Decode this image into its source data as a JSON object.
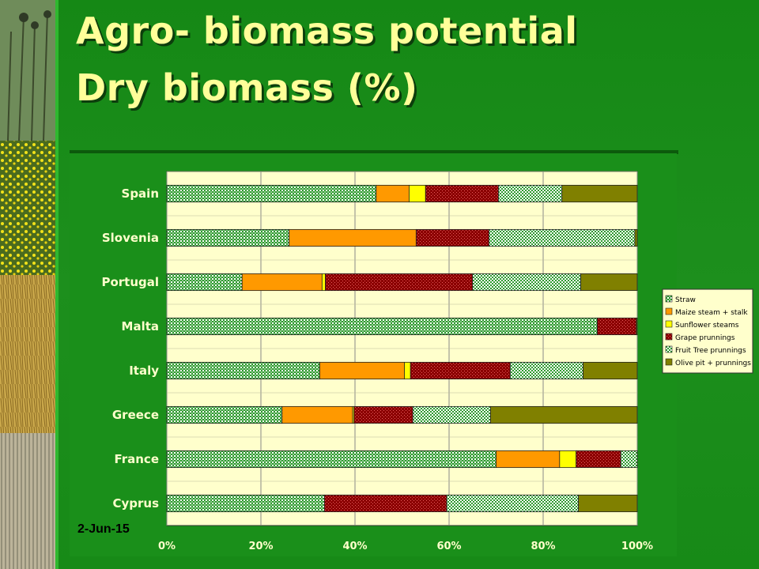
{
  "slide": {
    "title_line1": "Agro- biomass potential",
    "title_line2": "Dry biomass (%)",
    "date": "2-Jun-15"
  },
  "colors": {
    "background": "#1f8a1f",
    "title": "#ffff99",
    "plot_area": "#ffffcc"
  },
  "chart_data": {
    "type": "bar",
    "orientation": "horizontal",
    "stacked": "percent",
    "title": "",
    "xlabel": "",
    "ylabel": "",
    "xlim": [
      0,
      100
    ],
    "xticks": [
      "0%",
      "20%",
      "40%",
      "60%",
      "80%",
      "100%"
    ],
    "grid": true,
    "legend_position": "right",
    "categories": [
      "Spain",
      "Slovenia",
      "Portugal",
      "Malta",
      "Italy",
      "Greece",
      "France",
      "Cyprus"
    ],
    "series": [
      {
        "name": "Straw",
        "color": "#2e9a2e",
        "pattern": "checker",
        "values": [
          44.5,
          26,
          16,
          91.5,
          32.5,
          24.5,
          70,
          33.5
        ]
      },
      {
        "name": "Maize steam + stalk",
        "color": "#ff9900",
        "pattern": "solid",
        "values": [
          7,
          27,
          17,
          0,
          18,
          15,
          13.5,
          0
        ]
      },
      {
        "name": "Sunflower steams",
        "color": "#ffff00",
        "pattern": "solid",
        "values": [
          3.5,
          0,
          0.7,
          0,
          1.3,
          0.3,
          3.5,
          0
        ]
      },
      {
        "name": "Grape prunnings",
        "color": "#8b0000",
        "pattern": "dotted",
        "values": [
          15.5,
          15.5,
          31.3,
          8.3,
          21.2,
          12.5,
          9.5,
          26
        ]
      },
      {
        "name": "Fruit Tree prunnings",
        "color": "#2e9a2e",
        "pattern": "cross",
        "values": [
          13.5,
          31,
          23,
          0,
          15.5,
          16.5,
          3.5,
          28
        ]
      },
      {
        "name": "Olive pit + prunnings",
        "color": "#808000",
        "pattern": "solid",
        "values": [
          16,
          0.5,
          12,
          0.2,
          11.5,
          31.2,
          0,
          12.5
        ]
      }
    ]
  }
}
